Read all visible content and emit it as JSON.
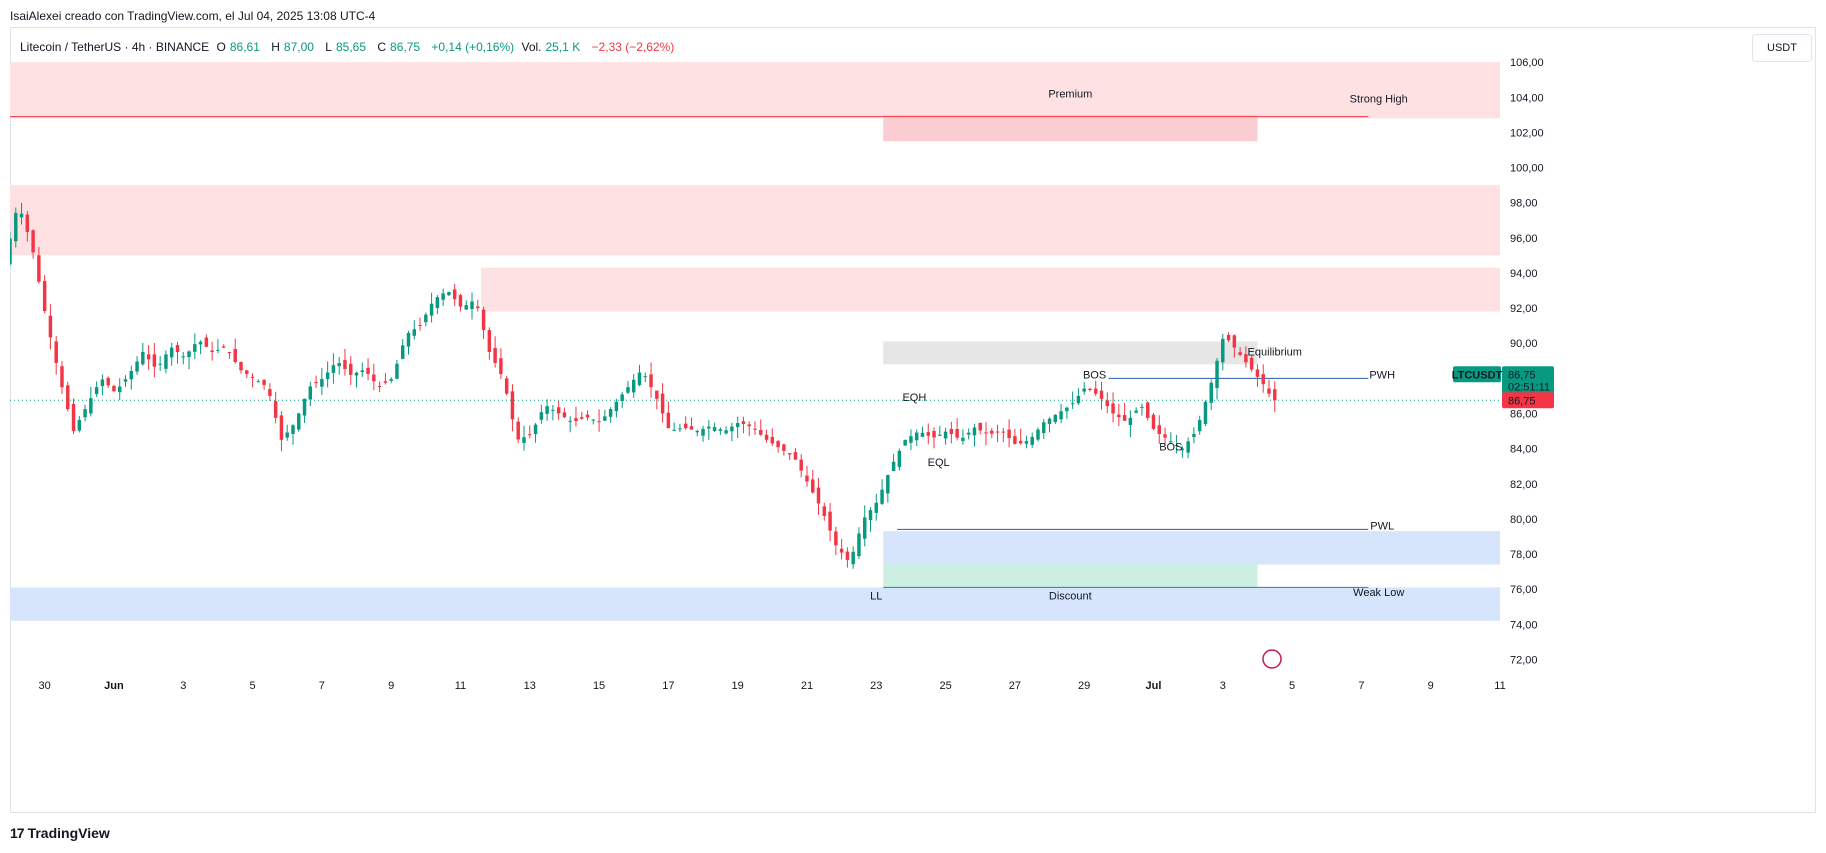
{
  "caption": "IsaiAlexei creado con TradingView.com, el Jul 04, 2025 13:08 UTC-4",
  "legend": {
    "symbol": "Litecoin / TetherUS · 4h · BINANCE",
    "o_label": "O",
    "o_value": "86,61",
    "h_label": "H",
    "h_value": "87,00",
    "l_label": "L",
    "l_value": "85,65",
    "c_label": "C",
    "c_value": "86,75",
    "change": "+0,14 (+0,16%)",
    "vol_label": "Vol.",
    "vol_value": "25,1 K",
    "vol_change": "−2,33 (−2,62%)"
  },
  "currency": "USDT",
  "footer": {
    "brand": "TradingView",
    "logo_icon": "tradingview-logo-icon"
  },
  "colors": {
    "up": "#089981",
    "down": "#f23645",
    "premium_zone": "#fde1e3",
    "discount_zone": "#d6e4fc",
    "discount_inner": "#cdeee2",
    "equilibrium": "#e6e6e6",
    "structure_line": "#2a5ab0",
    "price_line": "#089981"
  },
  "chart_data": {
    "type": "candlestick",
    "symbol": "LTCUSDT",
    "timeframe": "4h",
    "ylim": [
      71,
      108
    ],
    "y_ticks": [
      "72,00",
      "74,00",
      "76,00",
      "78,00",
      "80,00",
      "82,00",
      "84,00",
      "86,00",
      "88,00",
      "90,00",
      "92,00",
      "94,00",
      "96,00",
      "98,00",
      "100,00",
      "102,00",
      "104,00",
      "106,00"
    ],
    "y_tick_values": [
      72,
      74,
      76,
      78,
      80,
      82,
      84,
      86,
      88,
      90,
      92,
      94,
      96,
      98,
      100,
      102,
      104,
      106
    ],
    "x_ticks": [
      {
        "label": "30",
        "day": -1
      },
      {
        "label": "Jun",
        "day": 1
      },
      {
        "label": "3",
        "day": 3
      },
      {
        "label": "5",
        "day": 5
      },
      {
        "label": "7",
        "day": 7
      },
      {
        "label": "9",
        "day": 9
      },
      {
        "label": "11",
        "day": 11
      },
      {
        "label": "13",
        "day": 13
      },
      {
        "label": "15",
        "day": 15
      },
      {
        "label": "17",
        "day": 17
      },
      {
        "label": "19",
        "day": 19
      },
      {
        "label": "21",
        "day": 21
      },
      {
        "label": "23",
        "day": 23
      },
      {
        "label": "25",
        "day": 25
      },
      {
        "label": "27",
        "day": 27
      },
      {
        "label": "29",
        "day": 29
      },
      {
        "label": "Jul",
        "day": 31
      },
      {
        "label": "3",
        "day": 33
      },
      {
        "label": "5",
        "day": 35
      },
      {
        "label": "7",
        "day": 37
      },
      {
        "label": "9",
        "day": 39
      },
      {
        "label": "11",
        "day": 41
      }
    ],
    "x_range_days": [
      -2,
      41
    ],
    "series_anchor_points": [
      {
        "d": -2.0,
        "p": 94.5
      },
      {
        "d": -1.6,
        "p": 98.0
      },
      {
        "d": -1.2,
        "p": 95.5
      },
      {
        "d": -0.8,
        "p": 91.5
      },
      {
        "d": -0.4,
        "p": 88.0
      },
      {
        "d": 0.0,
        "p": 85.0
      },
      {
        "d": 0.4,
        "p": 86.5
      },
      {
        "d": 0.8,
        "p": 88.0
      },
      {
        "d": 1.2,
        "p": 87.2
      },
      {
        "d": 1.6,
        "p": 88.2
      },
      {
        "d": 2.0,
        "p": 89.5
      },
      {
        "d": 2.4,
        "p": 88.5
      },
      {
        "d": 2.8,
        "p": 89.8
      },
      {
        "d": 3.2,
        "p": 89.2
      },
      {
        "d": 3.6,
        "p": 90.2
      },
      {
        "d": 4.0,
        "p": 89.5
      },
      {
        "d": 4.4,
        "p": 89.8
      },
      {
        "d": 4.8,
        "p": 88.5
      },
      {
        "d": 5.2,
        "p": 88.0
      },
      {
        "d": 5.6,
        "p": 87.5
      },
      {
        "d": 6.0,
        "p": 84.5
      },
      {
        "d": 6.4,
        "p": 85.5
      },
      {
        "d": 6.8,
        "p": 87.5
      },
      {
        "d": 7.2,
        "p": 88.0
      },
      {
        "d": 7.6,
        "p": 89.0
      },
      {
        "d": 8.0,
        "p": 88.2
      },
      {
        "d": 8.4,
        "p": 88.5
      },
      {
        "d": 8.8,
        "p": 87.5
      },
      {
        "d": 9.2,
        "p": 88.0
      },
      {
        "d": 9.6,
        "p": 90.5
      },
      {
        "d": 10.0,
        "p": 91.0
      },
      {
        "d": 10.4,
        "p": 92.5
      },
      {
        "d": 10.8,
        "p": 93.0
      },
      {
        "d": 11.2,
        "p": 92.0
      },
      {
        "d": 11.6,
        "p": 92.5
      },
      {
        "d": 12.0,
        "p": 89.5
      },
      {
        "d": 12.4,
        "p": 88.0
      },
      {
        "d": 12.8,
        "p": 84.5
      },
      {
        "d": 13.2,
        "p": 84.8
      },
      {
        "d": 13.6,
        "p": 86.5
      },
      {
        "d": 14.0,
        "p": 86.0
      },
      {
        "d": 14.4,
        "p": 85.5
      },
      {
        "d": 14.8,
        "p": 85.8
      },
      {
        "d": 15.2,
        "p": 85.5
      },
      {
        "d": 15.6,
        "p": 86.5
      },
      {
        "d": 16.0,
        "p": 87.5
      },
      {
        "d": 16.4,
        "p": 88.5
      },
      {
        "d": 16.8,
        "p": 87.0
      },
      {
        "d": 17.2,
        "p": 85.0
      },
      {
        "d": 17.6,
        "p": 85.2
      },
      {
        "d": 18.0,
        "p": 85.0
      },
      {
        "d": 18.4,
        "p": 85.3
      },
      {
        "d": 18.8,
        "p": 85.0
      },
      {
        "d": 19.2,
        "p": 85.5
      },
      {
        "d": 19.6,
        "p": 85.2
      },
      {
        "d": 20.0,
        "p": 84.5
      },
      {
        "d": 20.4,
        "p": 84.0
      },
      {
        "d": 20.8,
        "p": 83.5
      },
      {
        "d": 21.2,
        "p": 82.0
      },
      {
        "d": 21.6,
        "p": 80.5
      },
      {
        "d": 22.0,
        "p": 78.5
      },
      {
        "d": 22.4,
        "p": 77.5
      },
      {
        "d": 22.8,
        "p": 80.0
      },
      {
        "d": 23.2,
        "p": 81.0
      },
      {
        "d": 23.6,
        "p": 83.0
      },
      {
        "d": 24.0,
        "p": 84.5
      },
      {
        "d": 24.4,
        "p": 85.0
      },
      {
        "d": 24.8,
        "p": 84.6
      },
      {
        "d": 25.2,
        "p": 85.0
      },
      {
        "d": 25.6,
        "p": 84.5
      },
      {
        "d": 26.0,
        "p": 85.2
      },
      {
        "d": 26.4,
        "p": 84.8
      },
      {
        "d": 26.8,
        "p": 85.0
      },
      {
        "d": 27.2,
        "p": 84.2
      },
      {
        "d": 27.6,
        "p": 84.5
      },
      {
        "d": 28.0,
        "p": 85.5
      },
      {
        "d": 28.4,
        "p": 86.0
      },
      {
        "d": 28.8,
        "p": 86.5
      },
      {
        "d": 29.2,
        "p": 87.5
      },
      {
        "d": 29.6,
        "p": 87.0
      },
      {
        "d": 30.0,
        "p": 86.0
      },
      {
        "d": 30.4,
        "p": 85.5
      },
      {
        "d": 30.8,
        "p": 86.5
      },
      {
        "d": 31.2,
        "p": 85.0
      },
      {
        "d": 31.6,
        "p": 84.5
      },
      {
        "d": 32.0,
        "p": 84.0
      },
      {
        "d": 32.4,
        "p": 85.0
      },
      {
        "d": 32.8,
        "p": 87.5
      },
      {
        "d": 33.2,
        "p": 90.5
      },
      {
        "d": 33.6,
        "p": 89.5
      },
      {
        "d": 34.0,
        "p": 88.5
      },
      {
        "d": 34.4,
        "p": 87.5
      },
      {
        "d": 34.6,
        "p": 86.75
      }
    ],
    "last_price": {
      "symbol": "LTCUSDT",
      "price": "86,75",
      "countdown": "02:51:11",
      "value": 86.75,
      "bid": "86,75"
    },
    "zones": [
      {
        "kind": "premium",
        "from_day": -2,
        "to_day": 41,
        "low": 102.8,
        "high": 106.0
      },
      {
        "kind": "premium-ob",
        "from_day": 23.2,
        "to_day": 34.0,
        "low": 101.5,
        "high": 103.0
      },
      {
        "kind": "supply",
        "from_day": -2,
        "to_day": 41,
        "low": 95.0,
        "high": 99.0
      },
      {
        "kind": "supply",
        "from_day": 11.6,
        "to_day": 41,
        "low": 91.8,
        "high": 94.3
      },
      {
        "kind": "equilibrium",
        "from_day": 23.2,
        "to_day": 34.0,
        "low": 88.8,
        "high": 90.1
      },
      {
        "kind": "discount",
        "from_day": 23.2,
        "to_day": 41,
        "low": 77.4,
        "high": 79.3
      },
      {
        "kind": "discount-ob",
        "from_day": 23.2,
        "to_day": 34.0,
        "low": 76.1,
        "high": 77.5
      },
      {
        "kind": "discount",
        "from_day": -2,
        "to_day": 41,
        "low": 74.2,
        "high": 76.1
      }
    ],
    "lines": [
      {
        "name": "strong-high",
        "day_from": -2,
        "day_to": 37.2,
        "price": 102.9,
        "color": "#f23645"
      },
      {
        "name": "pwh",
        "day_from": 29.7,
        "day_to": 37.2,
        "price": 88.0,
        "color": "#2a5ab0"
      },
      {
        "name": "pwl",
        "day_from": 23.6,
        "day_to": 37.2,
        "price": 79.4,
        "color": "#2a5ab0"
      },
      {
        "name": "weak-low",
        "day_from": 23.2,
        "day_to": 37.2,
        "price": 76.1,
        "color": "#089981"
      }
    ],
    "annotations": [
      {
        "text": "Premium",
        "day": 28.6,
        "price": 104.0,
        "color": "#f23645"
      },
      {
        "text": "Strong High",
        "day": 37.5,
        "price": 103.7,
        "color": "#f23645"
      },
      {
        "text": "Equilibrium",
        "day": 34.5,
        "price": 89.3,
        "color": "#787b86"
      },
      {
        "text": "PWH",
        "day": 37.6,
        "price": 88.0,
        "color": "#2a5ab0"
      },
      {
        "text": "PWL",
        "day": 37.6,
        "price": 79.4,
        "color": "#2a5ab0"
      },
      {
        "text": "Discount",
        "day": 28.6,
        "price": 75.4,
        "color": "#089981"
      },
      {
        "text": "Weak Low",
        "day": 37.5,
        "price": 75.6,
        "color": "#089981"
      },
      {
        "text": "LL",
        "day": 23.0,
        "price": 75.4,
        "color": "#089981"
      },
      {
        "text": "EQH",
        "day": 24.1,
        "price": 86.7,
        "color": "#f23645"
      },
      {
        "text": "EQL",
        "day": 24.8,
        "price": 83.0,
        "color": "#089981"
      },
      {
        "text": "BOS",
        "day": 29.3,
        "price": 88.0,
        "color": "#089981"
      },
      {
        "text": "BOS",
        "day": 31.5,
        "price": 83.9,
        "color": "#f23645"
      }
    ]
  }
}
